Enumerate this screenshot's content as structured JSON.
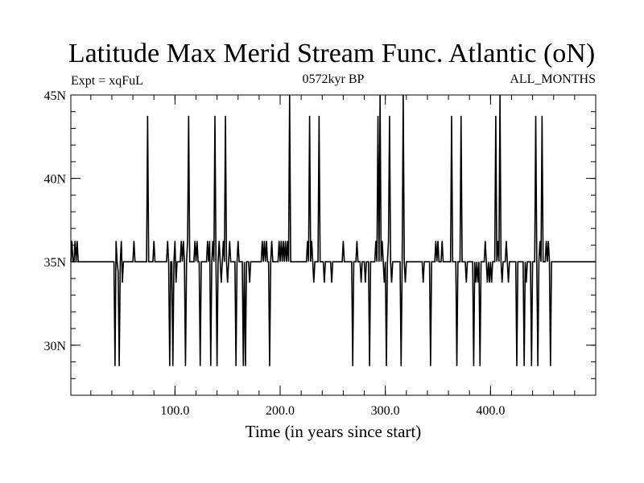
{
  "chart_data": {
    "type": "line",
    "title": "Latitude Max Merid Stream Func. Atlantic (oN)",
    "left_label": "Expt = xqFuL",
    "center_label": "0572kyr BP",
    "right_label": "ALL_MONTHS",
    "xlabel": "Time (in years since start)",
    "ylabel": "",
    "xlim": [
      1,
      500
    ],
    "ylim": [
      27.0,
      45.0
    ],
    "x_ticks": [
      100,
      200,
      300,
      400
    ],
    "x_tick_labels": [
      "100.0",
      "200.0",
      "300.0",
      "400.0"
    ],
    "x_minor_step": 20,
    "y_ticks": [
      30,
      35,
      40,
      45
    ],
    "y_tick_labels": [
      "30N",
      "35N",
      "40N",
      "45N"
    ],
    "y_minor_step": 1,
    "baseline": 35.0,
    "deviations": [
      [
        2,
        36.25
      ],
      [
        4,
        35.0
      ],
      [
        5,
        36.25
      ],
      [
        6,
        35.0
      ],
      [
        7,
        36.25
      ],
      [
        42,
        35.0
      ],
      [
        43,
        28.75
      ],
      [
        44,
        36.25
      ],
      [
        45,
        35.0
      ],
      [
        46,
        34.4
      ],
      [
        47,
        28.75
      ],
      [
        48,
        35.0
      ],
      [
        49,
        36.25
      ],
      [
        50,
        33.75
      ],
      [
        60,
        35.0
      ],
      [
        61,
        36.25
      ],
      [
        62,
        35.0
      ],
      [
        73,
        35.0
      ],
      [
        74,
        43.75
      ],
      [
        75,
        35.0
      ],
      [
        79,
        35.0
      ],
      [
        80,
        36.25
      ],
      [
        81,
        35.0
      ],
      [
        92,
        35.0
      ],
      [
        93,
        36.25
      ],
      [
        95,
        28.75
      ],
      [
        97,
        35.0
      ],
      [
        98,
        28.75
      ],
      [
        99,
        35.0
      ],
      [
        100,
        36.25
      ],
      [
        101,
        33.75
      ],
      [
        105,
        35.0
      ],
      [
        106,
        36.25
      ],
      [
        107,
        35.0
      ],
      [
        108,
        36.25
      ],
      [
        109,
        35.0
      ],
      [
        110,
        28.75
      ],
      [
        111,
        35.0
      ],
      [
        112,
        36.25
      ],
      [
        113,
        43.75
      ],
      [
        114,
        35.0
      ],
      [
        118,
        35.0
      ],
      [
        119,
        36.25
      ],
      [
        120,
        35.0
      ],
      [
        121,
        36.25
      ],
      [
        122,
        35.0
      ],
      [
        124,
        28.75
      ],
      [
        126,
        35.0
      ],
      [
        130,
        35.0
      ],
      [
        131,
        36.25
      ],
      [
        132,
        35.0
      ],
      [
        133,
        36.25
      ],
      [
        134,
        28.75
      ],
      [
        135,
        35.0
      ],
      [
        136,
        36.25
      ],
      [
        137,
        35.0
      ],
      [
        138,
        43.75
      ],
      [
        139,
        35.0
      ],
      [
        140,
        28.75
      ],
      [
        141,
        35.0
      ],
      [
        142,
        36.25
      ],
      [
        143,
        35.0
      ],
      [
        144,
        33.75
      ],
      [
        145,
        35.0
      ],
      [
        146,
        36.25
      ],
      [
        147,
        35.0
      ],
      [
        148,
        43.75
      ],
      [
        149,
        35.0
      ],
      [
        150,
        33.75
      ],
      [
        151,
        35.0
      ],
      [
        152,
        36.25
      ],
      [
        153,
        35.0
      ],
      [
        157,
        35.0
      ],
      [
        158,
        28.75
      ],
      [
        159,
        35.0
      ],
      [
        160,
        36.25
      ],
      [
        161,
        35.0
      ],
      [
        164,
        35.0
      ],
      [
        165,
        28.75
      ],
      [
        166,
        35.0
      ],
      [
        167,
        28.75
      ],
      [
        168,
        35.0
      ],
      [
        170,
        35.0
      ],
      [
        171,
        33.75
      ],
      [
        172,
        35.0
      ],
      [
        182,
        35.0
      ],
      [
        183,
        36.25
      ],
      [
        184,
        35.0
      ],
      [
        185,
        36.25
      ],
      [
        186,
        35.0
      ],
      [
        187,
        36.25
      ],
      [
        188,
        35.0
      ],
      [
        190,
        28.75
      ],
      [
        191,
        35.0
      ],
      [
        192,
        36.25
      ],
      [
        193,
        35.0
      ],
      [
        198,
        35.0
      ],
      [
        199,
        36.25
      ],
      [
        200,
        35.0
      ],
      [
        201,
        36.25
      ],
      [
        202,
        35.0
      ],
      [
        203,
        36.25
      ],
      [
        204,
        35.0
      ],
      [
        205,
        36.25
      ],
      [
        206,
        35.0
      ],
      [
        207,
        36.25
      ],
      [
        208,
        35.0
      ],
      [
        209,
        45.0
      ],
      [
        210,
        35.0
      ],
      [
        225,
        35.0
      ],
      [
        226,
        36.25
      ],
      [
        227,
        35.0
      ],
      [
        228,
        43.75
      ],
      [
        229,
        35.0
      ],
      [
        230,
        36.25
      ],
      [
        231,
        35.0
      ],
      [
        232,
        33.75
      ],
      [
        233,
        35.0
      ],
      [
        236,
        35.0
      ],
      [
        237,
        43.75
      ],
      [
        238,
        35.0
      ],
      [
        241,
        35.0
      ],
      [
        242,
        33.75
      ],
      [
        243,
        35.0
      ],
      [
        248,
        35.0
      ],
      [
        249,
        33.75
      ],
      [
        250,
        35.0
      ],
      [
        259,
        35.0
      ],
      [
        260,
        36.25
      ],
      [
        261,
        35.0
      ],
      [
        268,
        35.0
      ],
      [
        269,
        28.75
      ],
      [
        270,
        35.0
      ],
      [
        272,
        35.0
      ],
      [
        273,
        36.25
      ],
      [
        274,
        35.0
      ],
      [
        276,
        35.0
      ],
      [
        277,
        33.75
      ],
      [
        278,
        35.0
      ],
      [
        280,
        35.0
      ],
      [
        281,
        33.75
      ],
      [
        282,
        35.0
      ],
      [
        284,
        35.0
      ],
      [
        285,
        28.75
      ],
      [
        286,
        35.0
      ],
      [
        290,
        35.0
      ],
      [
        291,
        36.25
      ],
      [
        292,
        35.0
      ],
      [
        293,
        43.75
      ],
      [
        294,
        35.0
      ],
      [
        295,
        45.0
      ],
      [
        296,
        35.0
      ],
      [
        297,
        36.25
      ],
      [
        298,
        35.0
      ],
      [
        299,
        33.75
      ],
      [
        300,
        35.0
      ],
      [
        301,
        28.75
      ],
      [
        302,
        35.0
      ],
      [
        303,
        36.25
      ],
      [
        304,
        43.75
      ],
      [
        305,
        35.0
      ],
      [
        306,
        33.75
      ],
      [
        307,
        35.0
      ],
      [
        314,
        35.0
      ],
      [
        315,
        28.75
      ],
      [
        316,
        35.0
      ],
      [
        317,
        45.0
      ],
      [
        318,
        35.0
      ],
      [
        319,
        33.75
      ],
      [
        320,
        35.0
      ],
      [
        335,
        35.0
      ],
      [
        336,
        33.75
      ],
      [
        337,
        35.0
      ],
      [
        342,
        35.0
      ],
      [
        343,
        28.75
      ],
      [
        344,
        35.0
      ],
      [
        347,
        35.0
      ],
      [
        348,
        36.25
      ],
      [
        349,
        35.0
      ],
      [
        350,
        36.25
      ],
      [
        351,
        35.0
      ],
      [
        353,
        35.0
      ],
      [
        354,
        36.25
      ],
      [
        355,
        35.0
      ],
      [
        362,
        35.0
      ],
      [
        363,
        43.75
      ],
      [
        364,
        35.0
      ],
      [
        367,
        35.0
      ],
      [
        368,
        28.75
      ],
      [
        369,
        35.0
      ],
      [
        371,
        35.0
      ],
      [
        372,
        43.75
      ],
      [
        373,
        35.0
      ],
      [
        376,
        35.0
      ],
      [
        377,
        33.75
      ],
      [
        378,
        35.0
      ],
      [
        383,
        35.0
      ],
      [
        384,
        28.75
      ],
      [
        385,
        35.0
      ],
      [
        386,
        33.75
      ],
      [
        387,
        35.0
      ],
      [
        388,
        33.75
      ],
      [
        389,
        35.0
      ],
      [
        390,
        28.75
      ],
      [
        391,
        35.0
      ],
      [
        394,
        35.0
      ],
      [
        395,
        36.25
      ],
      [
        396,
        35.0
      ],
      [
        397,
        33.75
      ],
      [
        398,
        35.0
      ],
      [
        399,
        33.75
      ],
      [
        400,
        35.0
      ],
      [
        401,
        33.75
      ],
      [
        402,
        35.0
      ],
      [
        404,
        35.0
      ],
      [
        405,
        43.75
      ],
      [
        406,
        35.0
      ],
      [
        407,
        36.25
      ],
      [
        408,
        35.0
      ],
      [
        409,
        45.0
      ],
      [
        410,
        35.0
      ],
      [
        411,
        33.75
      ],
      [
        412,
        35.0
      ],
      [
        414,
        35.0
      ],
      [
        415,
        36.25
      ],
      [
        416,
        35.0
      ],
      [
        417,
        33.75
      ],
      [
        418,
        35.0
      ],
      [
        424,
        35.0
      ],
      [
        425,
        28.75
      ],
      [
        426,
        35.0
      ],
      [
        431,
        35.0
      ],
      [
        432,
        28.75
      ],
      [
        433,
        35.0
      ],
      [
        434,
        33.75
      ],
      [
        435,
        35.0
      ],
      [
        438,
        35.0
      ],
      [
        439,
        28.75
      ],
      [
        440,
        35.0
      ],
      [
        442,
        35.0
      ],
      [
        443,
        43.75
      ],
      [
        444,
        35.0
      ],
      [
        445,
        28.75
      ],
      [
        446,
        35.0
      ],
      [
        447,
        36.25
      ],
      [
        448,
        35.0
      ],
      [
        449,
        43.75
      ],
      [
        450,
        35.0
      ],
      [
        452,
        35.0
      ],
      [
        453,
        36.25
      ],
      [
        454,
        35.0
      ],
      [
        455,
        36.25
      ],
      [
        456,
        35.0
      ],
      [
        457,
        28.75
      ],
      [
        458,
        35.0
      ]
    ]
  }
}
